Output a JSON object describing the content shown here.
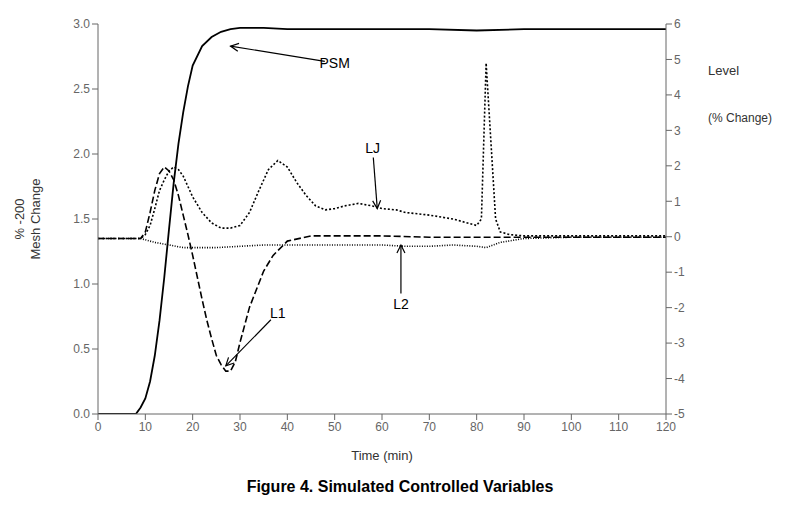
{
  "chart_data": {
    "type": "line",
    "title": "Figure 4. Simulated Controlled Variables",
    "x_label": "Time  (min)",
    "y_label": "% -200\nMesh Change",
    "y2_label": [
      "Level",
      "(% Change)"
    ],
    "xlim": [
      0,
      120
    ],
    "xticks": [
      0,
      10,
      20,
      30,
      40,
      50,
      60,
      70,
      80,
      90,
      100,
      110,
      120
    ],
    "ylim": [
      0,
      3
    ],
    "yticks": [
      {
        "value": 0,
        "label": "0.0"
      },
      0.5,
      {
        "value": 1,
        "label": "1.0"
      },
      1.5,
      {
        "value": 2,
        "label": "2.0"
      },
      2.5,
      {
        "value": 3,
        "label": "3.0"
      }
    ],
    "y2lim": [
      -5,
      6
    ],
    "y2ticks": [
      -5,
      -4,
      -3,
      -2,
      -1,
      0,
      1,
      2,
      3,
      4,
      5,
      6
    ],
    "series": [
      {
        "name": "PSM",
        "color": "black",
        "line_style": "solid",
        "x": [
          0,
          8,
          9,
          10,
          11,
          12,
          13,
          14,
          15,
          16,
          17,
          18,
          19,
          20,
          22,
          24,
          26,
          28,
          30,
          35,
          40,
          50,
          60,
          70,
          80,
          90,
          100,
          110,
          120
        ],
        "values": [
          0,
          0,
          0.05,
          0.12,
          0.25,
          0.45,
          0.72,
          1.05,
          1.42,
          1.78,
          2.08,
          2.32,
          2.52,
          2.68,
          2.83,
          2.9,
          2.94,
          2.96,
          2.97,
          2.97,
          2.96,
          2.96,
          2.96,
          2.96,
          2.95,
          2.96,
          2.96,
          2.96,
          2.96
        ]
      },
      {
        "name": "LJ",
        "color": "black",
        "line_style": "dotted",
        "x": [
          0,
          9,
          10,
          11,
          12,
          13,
          14,
          15,
          16,
          17,
          18,
          19,
          20,
          22,
          24,
          26,
          28,
          30,
          32,
          34,
          36,
          38,
          40,
          42,
          44,
          46,
          48,
          50,
          52,
          55,
          58,
          60,
          63,
          65,
          70,
          75,
          80,
          81,
          82,
          83,
          84,
          85,
          87,
          90,
          100,
          110,
          120
        ],
        "values": [
          1.35,
          1.35,
          1.38,
          1.45,
          1.58,
          1.72,
          1.8,
          1.87,
          1.9,
          1.88,
          1.83,
          1.75,
          1.67,
          1.55,
          1.47,
          1.43,
          1.43,
          1.45,
          1.55,
          1.72,
          1.88,
          1.95,
          1.9,
          1.78,
          1.68,
          1.6,
          1.57,
          1.58,
          1.6,
          1.62,
          1.6,
          1.58,
          1.57,
          1.55,
          1.53,
          1.5,
          1.45,
          1.5,
          2.7,
          2.1,
          1.5,
          1.4,
          1.38,
          1.37,
          1.37,
          1.37,
          1.37
        ]
      },
      {
        "name": "L1",
        "color": "black",
        "line_style": "dashed",
        "x": [
          0,
          9,
          10,
          11,
          12,
          13,
          14,
          15,
          16,
          17,
          18,
          19,
          20,
          21,
          22,
          23,
          24,
          25,
          26,
          27,
          28,
          29,
          30,
          32,
          35,
          37,
          40,
          45,
          50,
          60,
          70,
          80,
          90,
          100,
          110,
          120
        ],
        "values": [
          1.35,
          1.35,
          1.4,
          1.55,
          1.72,
          1.85,
          1.9,
          1.87,
          1.8,
          1.68,
          1.53,
          1.38,
          1.22,
          1.05,
          0.88,
          0.72,
          0.58,
          0.45,
          0.38,
          0.33,
          0.33,
          0.4,
          0.55,
          0.82,
          1.1,
          1.22,
          1.33,
          1.37,
          1.37,
          1.37,
          1.36,
          1.36,
          1.36,
          1.36,
          1.36,
          1.36
        ]
      },
      {
        "name": "L2",
        "color": "black",
        "line_style": "densely_dotted",
        "x": [
          0,
          9,
          10,
          12,
          15,
          18,
          20,
          25,
          30,
          35,
          40,
          50,
          60,
          65,
          70,
          75,
          80,
          82,
          85,
          90,
          100,
          110,
          120
        ],
        "values": [
          1.35,
          1.35,
          1.34,
          1.32,
          1.3,
          1.28,
          1.28,
          1.28,
          1.29,
          1.3,
          1.3,
          1.3,
          1.3,
          1.29,
          1.29,
          1.3,
          1.29,
          1.28,
          1.32,
          1.35,
          1.36,
          1.36,
          1.36
        ]
      }
    ],
    "annotations": [
      {
        "text": "PSM",
        "xy": [
          28,
          2.83
        ],
        "xytext": [
          50,
          2.7
        ]
      },
      {
        "text": "LJ",
        "xy": [
          59,
          1.58
        ],
        "xytext": [
          58,
          2.05
        ]
      },
      {
        "text": "L1",
        "xy": [
          27,
          0.37
        ],
        "xytext": [
          38,
          0.78
        ]
      },
      {
        "text": "L2",
        "xy": [
          64,
          1.3
        ],
        "xytext": [
          64,
          0.85
        ]
      }
    ]
  }
}
